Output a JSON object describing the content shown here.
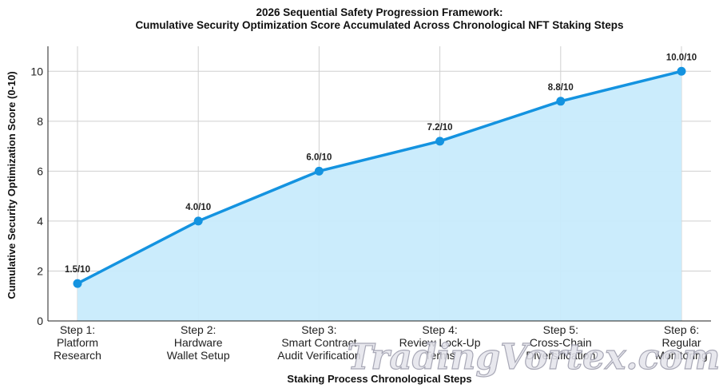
{
  "chart_data": {
    "type": "area",
    "title": "2026 Sequential Safety Progression Framework:",
    "subtitle": "Cumulative Security Optimization Score Accumulated Across Chronological NFT Staking Steps",
    "xlabel": "Staking Process Chronological Steps",
    "ylabel": "Cumulative Security Optimization Score (0-10)",
    "categories": [
      [
        "Step 1:",
        "Platform",
        "Research"
      ],
      [
        "Step 2:",
        "Hardware",
        "Wallet Setup"
      ],
      [
        "Step 3:",
        "Smart Contract",
        "Audit Verification"
      ],
      [
        "Step 4:",
        "Review Lock-Up",
        "Terms"
      ],
      [
        "Step 5:",
        "Cross-Chain",
        "Diversification"
      ],
      [
        "Step 6:",
        "Regular",
        "Monitoring"
      ]
    ],
    "values": [
      1.5,
      4.0,
      6.0,
      7.2,
      8.8,
      10.0
    ],
    "data_labels": [
      "1.5/10",
      "4.0/10",
      "6.0/10",
      "7.2/10",
      "8.8/10",
      "10.0/10"
    ],
    "ylim": [
      0,
      11
    ],
    "yticks": [
      0,
      2,
      4,
      6,
      8,
      10
    ],
    "grid": true,
    "colors": {
      "line": "#1493e0",
      "fill": "#c8ebfc",
      "marker": "#1493e0"
    }
  },
  "watermark": "TradingVortex.com"
}
